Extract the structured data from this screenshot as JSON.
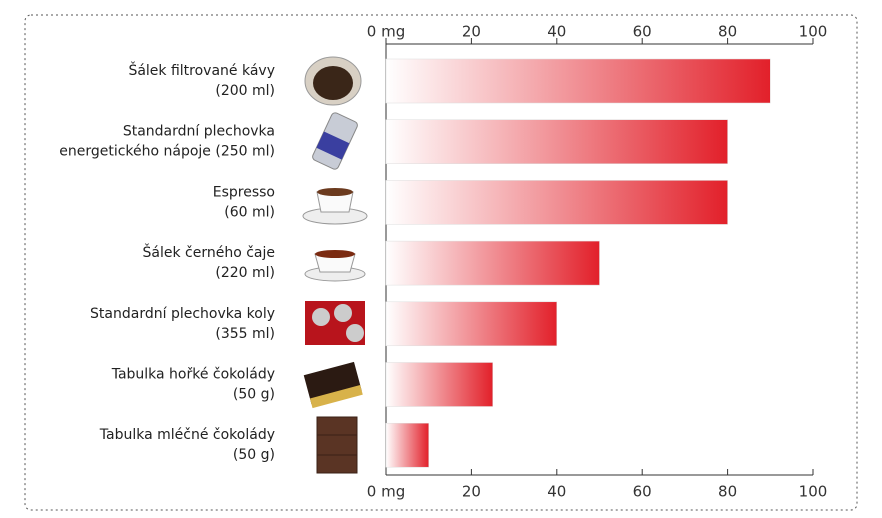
{
  "chart_data": {
    "type": "bar",
    "orientation": "horizontal",
    "categories": [
      [
        "Šálek filtrované kávy",
        "(200 ml)"
      ],
      [
        "Standardní plechovka",
        "energetického nápoje (250 ml)"
      ],
      [
        "Espresso",
        "(60 ml)"
      ],
      [
        "Šálek černého čaje",
        "(220 ml)"
      ],
      [
        "Standardní plechovka koly",
        "(355 ml)"
      ],
      [
        "Tabulka hořké čokolády",
        "(50 g)"
      ],
      [
        "Tabulka mléčné čokolády",
        "(50 g)"
      ]
    ],
    "values": [
      90,
      80,
      80,
      50,
      40,
      25,
      10
    ],
    "color": "#e2202a",
    "xlim": [
      0,
      100
    ],
    "xticks": [
      {
        "value": 0,
        "label": "0 mg"
      },
      20,
      40,
      60,
      80,
      100
    ]
  }
}
